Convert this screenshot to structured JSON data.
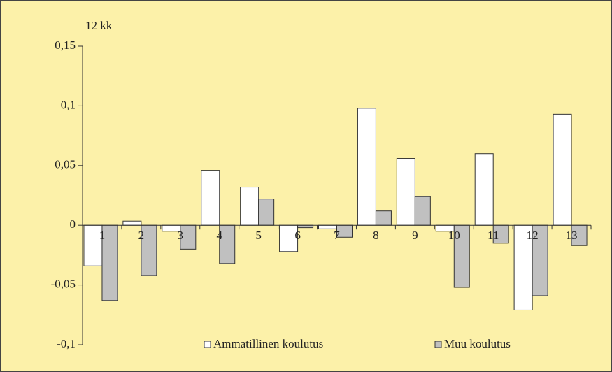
{
  "chart_data": {
    "type": "bar",
    "axis_label": "12 kk",
    "categories": [
      "1",
      "2",
      "3",
      "4",
      "5",
      "6",
      "7",
      "8",
      "9",
      "10",
      "11",
      "12",
      "13"
    ],
    "series": [
      {
        "name": "Ammatillinen koulutus",
        "color": "#ffffff",
        "values": [
          -0.034,
          0.0035,
          -0.005,
          0.046,
          0.032,
          -0.022,
          -0.003,
          0.098,
          0.056,
          -0.005,
          0.06,
          -0.071,
          0.093
        ]
      },
      {
        "name": "Muu koulutus",
        "color": "#c0c0c0",
        "values": [
          -0.063,
          -0.042,
          -0.02,
          -0.032,
          0.022,
          -0.002,
          -0.01,
          0.012,
          0.024,
          -0.052,
          -0.015,
          -0.059,
          -0.017
        ]
      }
    ],
    "ylim": [
      -0.1,
      0.15
    ],
    "yticks": [
      {
        "value": -0.1,
        "label": "-0,1"
      },
      {
        "value": -0.05,
        "label": "-0,05"
      },
      0,
      {
        "value": 0.05,
        "label": "0,05"
      },
      {
        "value": 0.1,
        "label": "0,1"
      },
      {
        "value": 0.15,
        "label": "0,15"
      }
    ],
    "grid": false
  }
}
